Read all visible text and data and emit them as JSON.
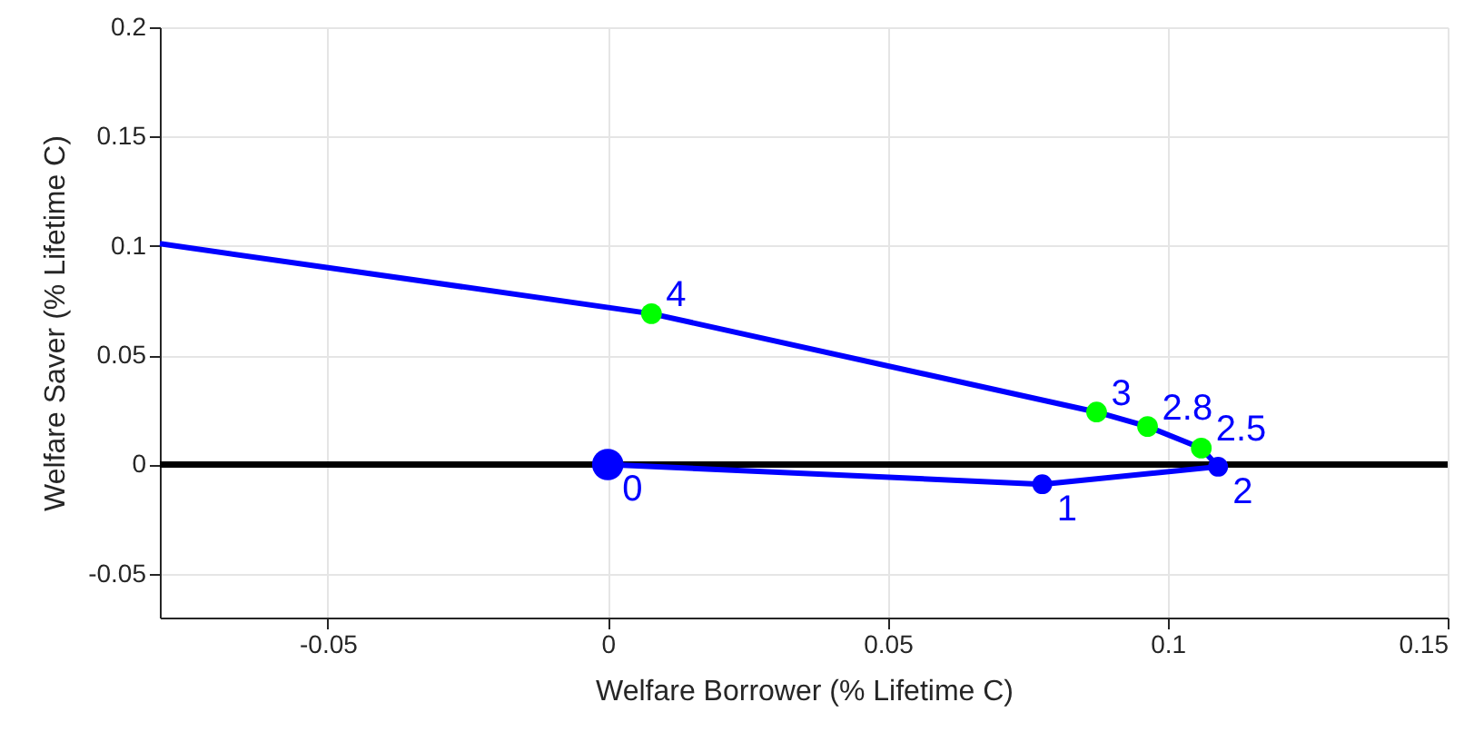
{
  "chart_data": {
    "type": "line",
    "xlabel": "Welfare Borrower (% Lifetime C)",
    "ylabel": "Welfare Saver (% Lifetime C)",
    "xlim": [
      -0.08,
      0.15
    ],
    "xticks": [
      -0.05,
      0,
      0.05,
      0.1,
      0.15
    ],
    "ylim": [
      -0.07,
      0.2
    ],
    "yticks": [
      -0.05,
      0,
      0.05,
      0.1,
      0.15,
      0.2
    ],
    "grid": true,
    "line_style": "solid",
    "series": [
      {
        "color": "#0000ff",
        "marker": "none",
        "x": [
          -0.08,
          0.0078,
          0.0873,
          0.0964,
          0.106,
          0.109,
          0.0776,
          0
        ],
        "values": [
          0.101,
          0.069,
          0.024,
          0.0174,
          0.0075,
          -0.001,
          -0.009,
          0
        ]
      },
      {
        "type": "scatter",
        "color": "#00ff00",
        "marker": "circle",
        "x": [
          0.0078,
          0.0873,
          0.0964,
          0.106
        ],
        "values": [
          0.069,
          0.024,
          0.0174,
          0.0075
        ]
      },
      {
        "type": "bubble",
        "color": "#0000ff",
        "marker": "circle",
        "x": [
          0.109,
          0.0776,
          0
        ],
        "values": [
          -0.001,
          -0.009,
          0
        ],
        "sizes": [
          0.4,
          0.4,
          1
        ]
      }
    ],
    "ref_lines": [
      {
        "axis": "y",
        "value": 0,
        "color": "#000000",
        "line_style": "solid"
      }
    ],
    "annotations": [
      {
        "text": "4",
        "x": 0.0078,
        "y": 0.069
      },
      {
        "text": "3",
        "x": 0.0873,
        "y": 0.024
      },
      {
        "text": "2.8",
        "x": 0.0964,
        "y": 0.0174
      },
      {
        "text": "2.5",
        "x": 0.106,
        "y": 0.0075
      },
      {
        "text": "2",
        "x": 0.109,
        "y": -0.001
      },
      {
        "text": "1",
        "x": 0.0776,
        "y": -0.009
      },
      {
        "text": "0",
        "x": 0,
        "y": 0
      }
    ]
  }
}
